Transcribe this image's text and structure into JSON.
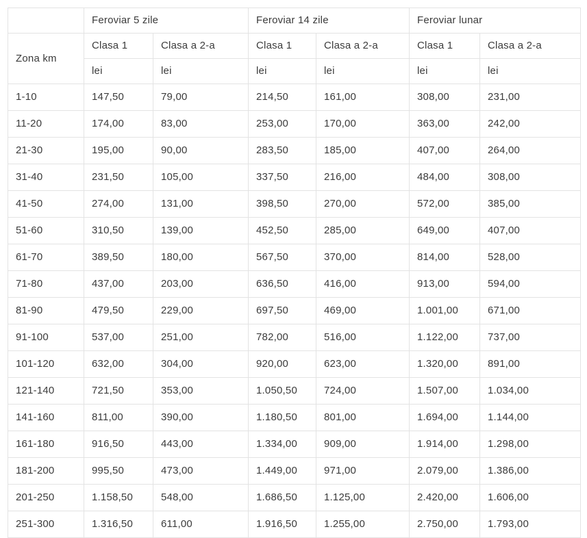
{
  "chart_data": {
    "type": "table",
    "title": "",
    "column_groups": [
      "Feroviar 5 zile",
      "Feroviar 14 zile",
      "Feroviar lunar"
    ],
    "class_labels": [
      "Clasa 1",
      "Clasa a 2-a"
    ],
    "unit_label": "lei",
    "row_header_label": "Zona km",
    "rows": [
      {
        "zona": "1-10",
        "values": [
          "147,50",
          "79,00",
          "214,50",
          "161,00",
          "308,00",
          "231,00"
        ]
      },
      {
        "zona": "11-20",
        "values": [
          "174,00",
          "83,00",
          "253,00",
          "170,00",
          "363,00",
          "242,00"
        ]
      },
      {
        "zona": "21-30",
        "values": [
          "195,00",
          "90,00",
          "283,50",
          "185,00",
          "407,00",
          "264,00"
        ]
      },
      {
        "zona": "31-40",
        "values": [
          "231,50",
          "105,00",
          "337,50",
          "216,00",
          "484,00",
          "308,00"
        ]
      },
      {
        "zona": "41-50",
        "values": [
          "274,00",
          "131,00",
          "398,50",
          "270,00",
          "572,00",
          "385,00"
        ]
      },
      {
        "zona": "51-60",
        "values": [
          "310,50",
          "139,00",
          "452,50",
          "285,00",
          "649,00",
          "407,00"
        ]
      },
      {
        "zona": "61-70",
        "values": [
          "389,50",
          "180,00",
          "567,50",
          "370,00",
          "814,00",
          "528,00"
        ]
      },
      {
        "zona": "71-80",
        "values": [
          "437,00",
          "203,00",
          "636,50",
          "416,00",
          "913,00",
          "594,00"
        ]
      },
      {
        "zona": "81-90",
        "values": [
          "479,50",
          "229,00",
          "697,50",
          "469,00",
          "1.001,00",
          "671,00"
        ]
      },
      {
        "zona": "91-100",
        "values": [
          "537,00",
          "251,00",
          "782,00",
          "516,00",
          "1.122,00",
          "737,00"
        ]
      },
      {
        "zona": "101-120",
        "values": [
          "632,00",
          "304,00",
          "920,00",
          "623,00",
          "1.320,00",
          "891,00"
        ]
      },
      {
        "zona": "121-140",
        "values": [
          "721,50",
          "353,00",
          "1.050,50",
          "724,00",
          "1.507,00",
          "1.034,00"
        ]
      },
      {
        "zona": "141-160",
        "values": [
          "811,00",
          "390,00",
          "1.180,50",
          "801,00",
          "1.694,00",
          "1.144,00"
        ]
      },
      {
        "zona": "161-180",
        "values": [
          "916,50",
          "443,00",
          "1.334,00",
          "909,00",
          "1.914,00",
          "1.298,00"
        ]
      },
      {
        "zona": "181-200",
        "values": [
          "995,50",
          "473,00",
          "1.449,00",
          "971,00",
          "2.079,00",
          "1.386,00"
        ]
      },
      {
        "zona": "201-250",
        "values": [
          "1.158,50",
          "548,00",
          "1.686,50",
          "1.125,00",
          "2.420,00",
          "1.606,00"
        ]
      },
      {
        "zona": "251-300",
        "values": [
          "1.316,50",
          "611,00",
          "1.916,50",
          "1.255,00",
          "2.750,00",
          "1.793,00"
        ]
      }
    ]
  },
  "colors": {
    "text": "#3b3b3b",
    "border": "#e3e3e3",
    "background": "#ffffff"
  }
}
